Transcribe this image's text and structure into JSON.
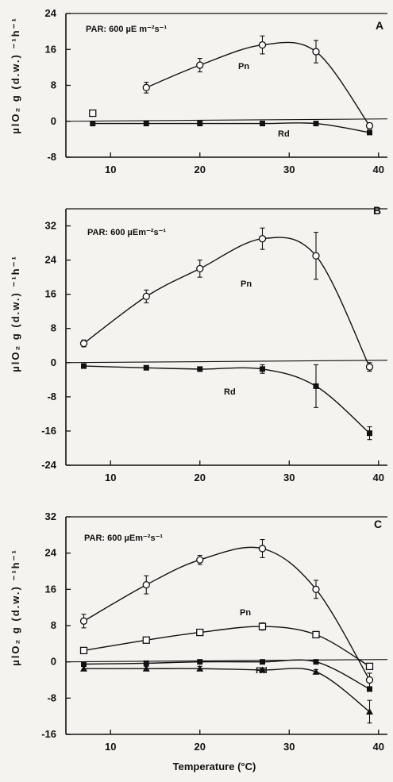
{
  "chart_data": [
    {
      "type": "line",
      "panel_label": "A",
      "annotation": "PAR: 600 µE m⁻²s⁻¹",
      "ylabel": "µlO₂ g (d.w.) ⁻¹h⁻¹",
      "xlim": [
        5,
        41
      ],
      "ylim": [
        -8,
        24
      ],
      "yticks": [
        -8,
        0,
        8,
        16,
        24
      ],
      "xticks": [
        10,
        20,
        30,
        40
      ],
      "series": [
        {
          "name": "Pn",
          "marker": "open-square",
          "x": [
            8
          ],
          "y": [
            1.8
          ]
        },
        {
          "name": "Pn",
          "marker": "open-circle",
          "x": [
            14,
            20,
            27,
            33,
            39
          ],
          "y": [
            7.5,
            12.5,
            17,
            15.5,
            -1
          ],
          "err": [
            1.2,
            1.5,
            2,
            2.5,
            0.6
          ]
        },
        {
          "name": "Rd",
          "marker": "filled-square",
          "x": [
            8,
            14,
            20,
            27,
            33,
            39
          ],
          "y": [
            -0.5,
            -0.5,
            -0.5,
            -0.5,
            -0.5,
            -2.5
          ]
        }
      ]
    },
    {
      "type": "line",
      "panel_label": "B",
      "annotation": "PAR: 600 µEm⁻²s⁻¹",
      "ylabel": "µlO₂ g (d.w.) ⁻¹h⁻¹",
      "xlim": [
        5,
        41
      ],
      "ylim": [
        -24,
        36
      ],
      "yticks": [
        -24,
        -16,
        -8,
        0,
        8,
        16,
        24,
        32
      ],
      "xticks": [
        10,
        20,
        30,
        40
      ],
      "series": [
        {
          "name": "Pn",
          "marker": "open-circle",
          "x": [
            7,
            14,
            20,
            27,
            33,
            39
          ],
          "y": [
            4.5,
            15.5,
            22,
            29,
            25,
            -1
          ],
          "err": [
            0.8,
            1.5,
            2,
            2.5,
            5.5,
            1
          ]
        },
        {
          "name": "Rd",
          "marker": "filled-square",
          "x": [
            7,
            14,
            20,
            27,
            33,
            39
          ],
          "y": [
            -0.8,
            -1.2,
            -1.5,
            -1.5,
            -5.5,
            -16.5
          ],
          "err": [
            0.5,
            0.5,
            0.5,
            1,
            5,
            1.5
          ]
        }
      ]
    },
    {
      "type": "line",
      "panel_label": "C",
      "annotation": "PAR: 600 µEm⁻²s⁻¹",
      "ylabel": "µlO₂ g (d.w.) ⁻¹h⁻¹",
      "xlabel": "Temperature (°C)",
      "xlim": [
        5,
        41
      ],
      "ylim": [
        -16,
        32
      ],
      "yticks": [
        -16,
        -8,
        0,
        8,
        16,
        24,
        32
      ],
      "xticks": [
        10,
        20,
        30,
        40
      ],
      "series": [
        {
          "name": "Pn",
          "marker": "open-circle",
          "x": [
            7,
            14,
            20,
            27,
            33,
            39
          ],
          "y": [
            9,
            17,
            22.5,
            25,
            16,
            -4
          ],
          "err": [
            1.5,
            2,
            1,
            2,
            2,
            1.5
          ]
        },
        {
          "name": "Pn",
          "marker": "open-square",
          "x": [
            7,
            14,
            20,
            27,
            33,
            39
          ],
          "y": [
            2.5,
            4.8,
            6.5,
            7.8,
            6,
            -1
          ],
          "err": [
            0.5,
            0.6,
            0.6,
            0.8,
            0.6,
            0.5
          ]
        },
        {
          "name": "Rd",
          "marker": "filled-square",
          "x": [
            7,
            14,
            20,
            27,
            33,
            39
          ],
          "y": [
            -0.5,
            -0.3,
            0,
            0,
            0,
            -6
          ]
        },
        {
          "name": "Rd",
          "marker": "filled-triangle",
          "x": [
            7,
            14,
            20,
            27,
            33,
            39
          ],
          "y": [
            -1.5,
            -1.5,
            -1.5,
            -1.8,
            -2.2,
            -11
          ],
          "err": [
            0.5,
            0.5,
            0.5,
            0.5,
            0.5,
            2.5
          ]
        }
      ]
    }
  ],
  "labels": {
    "pn": "Pn",
    "rd": "Rd"
  }
}
